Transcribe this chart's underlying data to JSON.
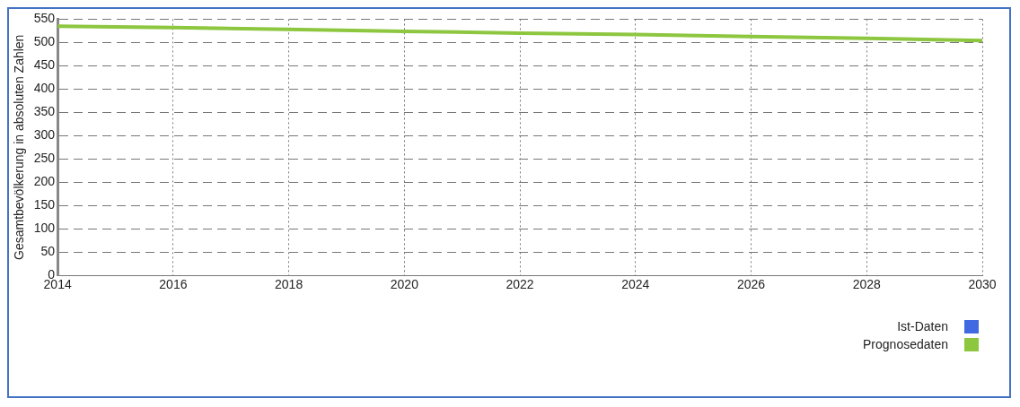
{
  "chart_data": {
    "type": "line",
    "ylabel": "Gesamtbevölkerung in absoluten Zahlen",
    "x": [
      2014,
      2016,
      2018,
      2020,
      2022,
      2024,
      2026,
      2028,
      2030
    ],
    "series": [
      {
        "name": "Ist-Daten",
        "color": "#4169e1",
        "values": [
          null,
          null,
          null,
          null,
          null,
          null,
          null,
          null,
          null
        ]
      },
      {
        "name": "Prognosedaten",
        "color": "#8dc63f",
        "values": [
          535,
          532,
          528,
          524,
          520,
          517,
          513,
          509,
          504
        ]
      }
    ],
    "xlim": [
      2014,
      2030
    ],
    "xticks": [
      2014,
      2016,
      2018,
      2020,
      2022,
      2024,
      2026,
      2028,
      2030
    ],
    "ylim": [
      0,
      550
    ],
    "yticks": [
      0,
      50,
      100,
      150,
      200,
      250,
      300,
      350,
      400,
      450,
      500,
      550
    ],
    "grid": true,
    "legend": "bottom right",
    "marker": "none",
    "line_style": "solid"
  }
}
